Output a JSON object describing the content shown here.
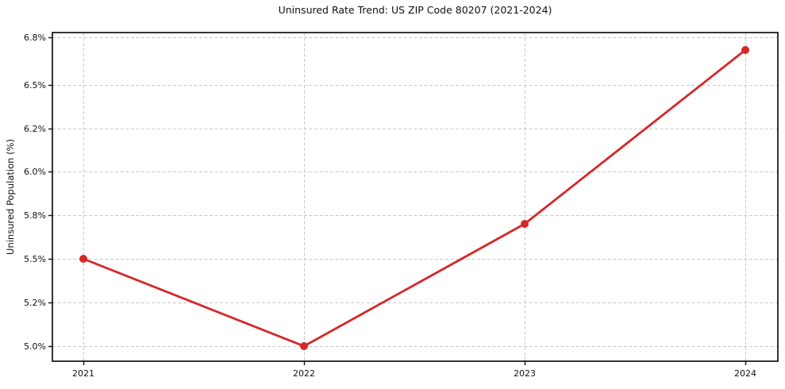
{
  "chart_data": {
    "type": "line",
    "title": "Uninsured Rate Trend: US ZIP Code 80207 (2021-2024)",
    "xlabel": "",
    "ylabel": "Uninsured Population (%)",
    "x": [
      "2021",
      "2022",
      "2023",
      "2024"
    ],
    "series": [
      {
        "name": "Uninsured rate",
        "values": [
          5.5,
          5.0,
          5.74,
          6.72
        ]
      }
    ],
    "y_ticks": {
      "values": [
        5.0,
        5.2,
        5.5,
        5.8,
        6.0,
        6.2,
        6.5,
        6.8
      ],
      "labels": [
        "5.0%",
        "5.2%",
        "5.5%",
        "5.8%",
        "6.0%",
        "6.2%",
        "6.5%",
        "6.8%"
      ]
    },
    "x_tick_labels": [
      "2021",
      "2022",
      "2023",
      "2024"
    ],
    "grid": "both-dashed",
    "legend": "none",
    "line_color": "#d62728",
    "marker": "circle"
  }
}
